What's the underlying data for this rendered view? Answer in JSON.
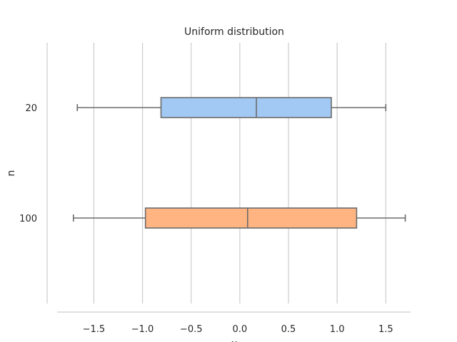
{
  "chart_data": {
    "type": "boxplot",
    "orientation": "horizontal",
    "title": "Uniform distribution",
    "xlabel": "x",
    "ylabel": "n",
    "xlim": [
      -1.98,
      1.85
    ],
    "xticks": [
      -1.5,
      -1.0,
      -0.5,
      0.0,
      0.5,
      1.0,
      1.5
    ],
    "xtick_labels": [
      "−1.5",
      "−1.0",
      "−0.5",
      "0.0",
      "0.5",
      "1.0",
      "1.5"
    ],
    "grid": "vertical",
    "categories": [
      "20",
      "100"
    ],
    "boxes": [
      {
        "category": "20",
        "whislo": -1.67,
        "q1": -0.81,
        "med": 0.17,
        "q3": 0.94,
        "whishi": 1.5,
        "color": "#a1c9f4"
      },
      {
        "category": "100",
        "whislo": -1.71,
        "q1": -0.97,
        "med": 0.08,
        "q3": 1.2,
        "whishi": 1.7,
        "color": "#ffb482"
      }
    ]
  }
}
